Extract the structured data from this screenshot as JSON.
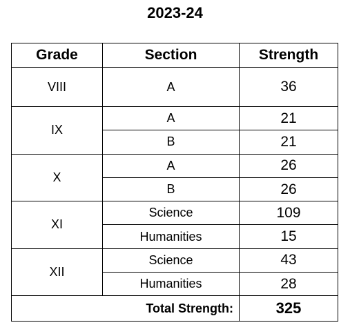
{
  "title": "2023-24",
  "table": {
    "columns": [
      "Grade",
      "Section",
      "Strength"
    ],
    "groups": [
      {
        "grade": "VIII",
        "sections": [
          {
            "section": "A",
            "strength": 36
          }
        ]
      },
      {
        "grade": "IX",
        "sections": [
          {
            "section": "A",
            "strength": 21
          },
          {
            "section": "B",
            "strength": 21
          }
        ]
      },
      {
        "grade": "X",
        "sections": [
          {
            "section": "A",
            "strength": 26
          },
          {
            "section": "B",
            "strength": 26
          }
        ]
      },
      {
        "grade": "XI",
        "sections": [
          {
            "section": "Science",
            "strength": 109
          },
          {
            "section": "Humanities",
            "strength": 15
          }
        ]
      },
      {
        "grade": "XII",
        "sections": [
          {
            "section": "Science",
            "strength": 43
          },
          {
            "section": "Humanities",
            "strength": 28
          }
        ]
      }
    ],
    "total": {
      "label": "Total Strength:",
      "value": 325
    }
  }
}
